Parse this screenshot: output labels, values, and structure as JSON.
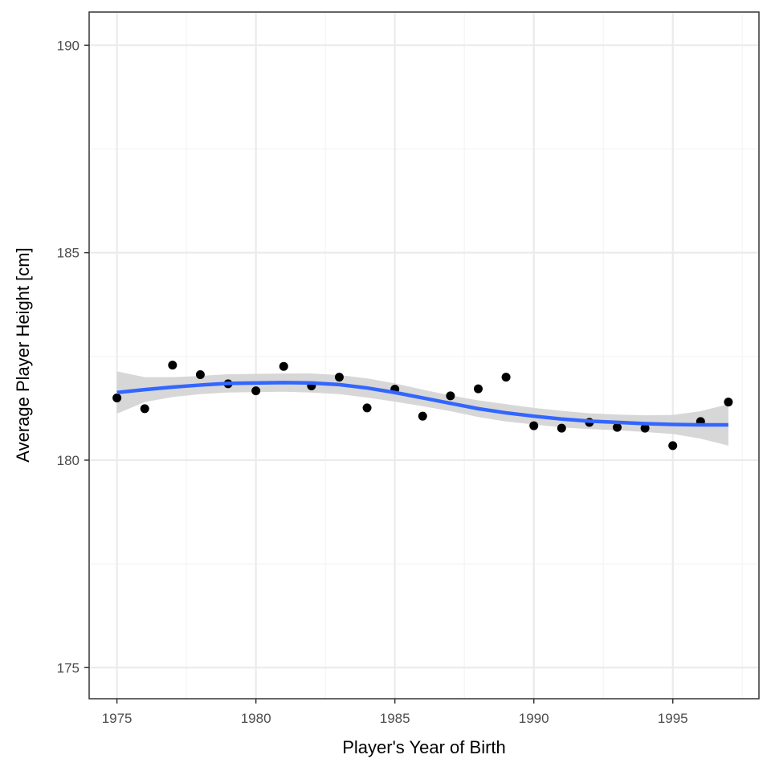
{
  "chart_data": {
    "type": "scatter",
    "title": "",
    "xlabel": "Player's Year of Birth",
    "ylabel": "Average Player Height [cm]",
    "xlim": [
      1974.0,
      1998.1
    ],
    "ylim": [
      174.25,
      190.8
    ],
    "x_ticks": [
      1975,
      1980,
      1985,
      1990,
      1995
    ],
    "y_ticks": [
      175,
      180,
      185,
      190
    ],
    "x_tick_labels": [
      "1975",
      "1980",
      "1985",
      "1990",
      "1995"
    ],
    "y_tick_labels": [
      "175",
      "180",
      "185",
      "190"
    ],
    "grid": true,
    "legend": "none",
    "colors": {
      "points": "#000000",
      "smooth_line": "#3366FF",
      "confidence_band": "#D3D3D3",
      "grid_major": "#EBEBEB",
      "grid_minor": "#F4F4F4",
      "panel_border": "#333333"
    },
    "points": {
      "x": [
        1975,
        1976,
        1977,
        1978,
        1979,
        1980,
        1981,
        1982,
        1983,
        1984,
        1985,
        1986,
        1987,
        1988,
        1989,
        1990,
        1991,
        1992,
        1993,
        1994,
        1995,
        1996,
        1997
      ],
      "y": [
        181.5,
        181.24,
        182.29,
        182.06,
        181.84,
        181.67,
        182.26,
        181.79,
        182.0,
        181.26,
        181.71,
        181.06,
        181.55,
        181.72,
        182.0,
        180.83,
        180.77,
        180.91,
        180.79,
        180.77,
        180.35,
        180.93,
        181.4
      ]
    },
    "smooth": {
      "x": [
        1975,
        1976,
        1977,
        1978,
        1979,
        1980,
        1981,
        1982,
        1983,
        1984,
        1985,
        1986,
        1987,
        1988,
        1989,
        1990,
        1991,
        1992,
        1993,
        1994,
        1995,
        1996,
        1997
      ],
      "y": [
        181.63,
        181.7,
        181.76,
        181.81,
        181.85,
        181.86,
        181.87,
        181.86,
        181.82,
        181.74,
        181.63,
        181.5,
        181.37,
        181.24,
        181.14,
        181.06,
        180.99,
        180.94,
        180.91,
        180.88,
        180.86,
        180.85,
        180.85
      ],
      "lower": [
        181.12,
        181.4,
        181.52,
        181.59,
        181.63,
        181.64,
        181.65,
        181.63,
        181.59,
        181.51,
        181.41,
        181.3,
        181.18,
        181.04,
        180.93,
        180.86,
        180.79,
        180.75,
        180.72,
        180.68,
        180.63,
        180.52,
        180.35
      ],
      "upper": [
        182.14,
        182.0,
        182.0,
        182.03,
        182.07,
        182.08,
        182.09,
        182.09,
        182.05,
        181.97,
        181.85,
        181.7,
        181.56,
        181.44,
        181.35,
        181.26,
        181.19,
        181.13,
        181.1,
        181.08,
        181.09,
        181.18,
        181.35
      ]
    }
  }
}
